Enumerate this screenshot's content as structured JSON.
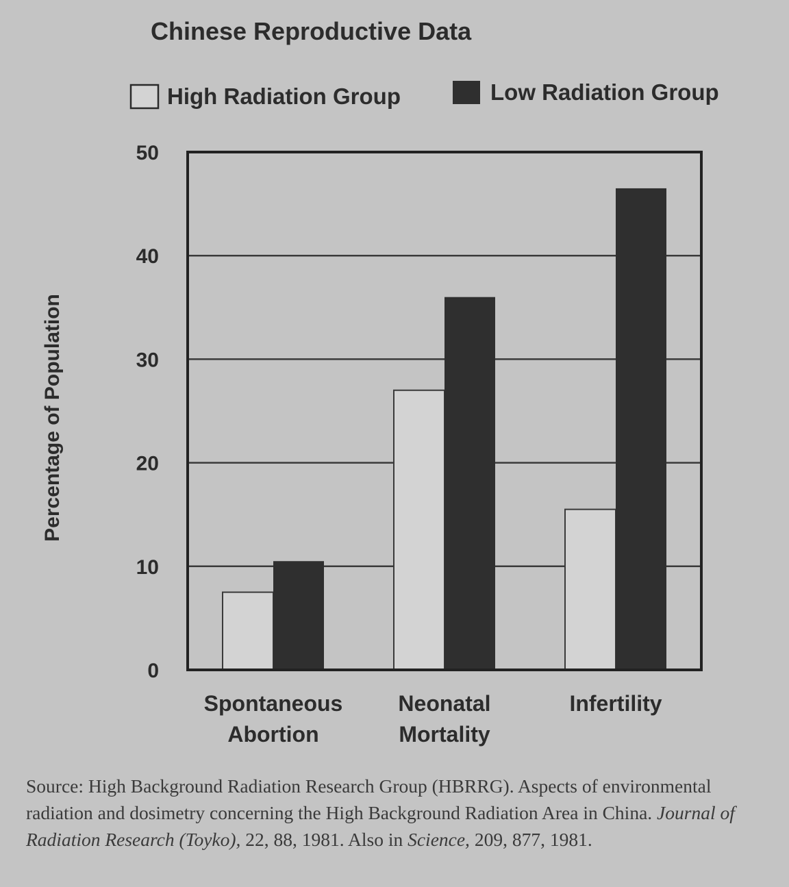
{
  "chart_data": {
    "type": "bar",
    "title": "Chinese Reproductive Data",
    "ylabel": "Percentage of Population",
    "xlabel": "",
    "ylim": [
      0,
      50
    ],
    "yticks": [
      0,
      10,
      20,
      30,
      40,
      50
    ],
    "grid": true,
    "legend_position": "top",
    "categories": [
      [
        "Spontaneous",
        "Abortion"
      ],
      [
        "Neonatal",
        "Mortality"
      ],
      [
        "Infertility"
      ]
    ],
    "series": [
      {
        "name": "High Radiation Group",
        "values": [
          7.5,
          27,
          15.5
        ],
        "color": "#d3d3d3"
      },
      {
        "name": "Low Radiation Group",
        "values": [
          10.5,
          36,
          46.5
        ],
        "color": "#2f2f2f"
      }
    ]
  },
  "source": {
    "label": "Source:",
    "text_before": "High Background Radiation Research Group (HBRRG). Aspects of environmental radiation and dosimetry concerning the High Background Radiation Area in China.",
    "journal": "Journal of Radiation Research (Toyko),",
    "text_mid": "22, 88, 1981. Also in",
    "journal2": "Science,",
    "text_after": "209, 877, 1981."
  }
}
